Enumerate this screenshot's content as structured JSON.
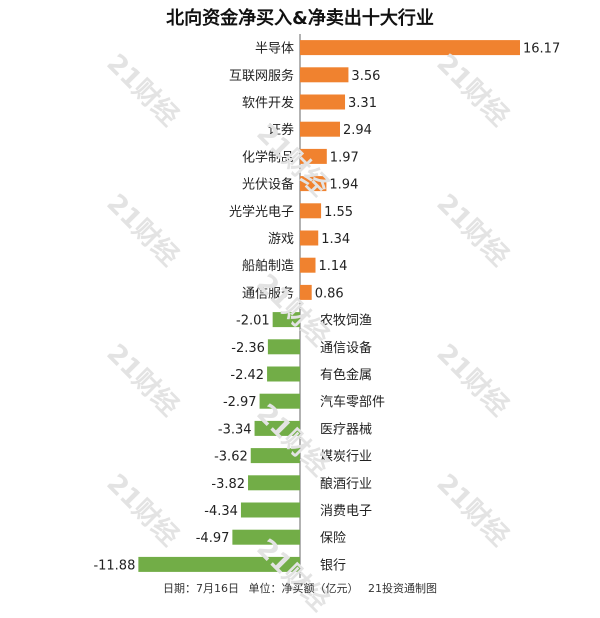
{
  "chart_data": {
    "type": "bar",
    "orientation": "horizontal",
    "title": "北向资金净买入&净卖出十大行业",
    "categories": [
      "半导体",
      "互联网服务",
      "软件开发",
      "证券",
      "化学制品",
      "光伏设备",
      "光学光电子",
      "游戏",
      "船舶制造",
      "通信服务",
      "农牧饲渔",
      "通信设备",
      "有色金属",
      "汽车零部件",
      "医疗器械",
      "煤炭行业",
      "酿酒行业",
      "消费电子",
      "保险",
      "银行"
    ],
    "values": [
      16.17,
      3.56,
      3.31,
      2.94,
      1.97,
      1.94,
      1.55,
      1.34,
      1.14,
      0.86,
      -2.01,
      -2.36,
      -2.42,
      -2.97,
      -3.34,
      -3.62,
      -3.82,
      -4.34,
      -4.97,
      -11.88
    ],
    "value_labels": [
      "16.17",
      "3.56",
      "3.31",
      "2.94",
      "1.97",
      "1.94",
      "1.55",
      "1.34",
      "1.14",
      "0.86",
      "-2.01",
      "-2.36",
      "-2.42",
      "-2.97",
      "-3.34",
      "-3.62",
      "-3.82",
      "-4.34",
      "-4.97",
      "-11.88"
    ],
    "colors": {
      "positive": "#f0822f",
      "negative": "#72ad47",
      "axis": "#666666"
    },
    "grid": false,
    "legend": "none"
  },
  "footer": {
    "date": "日期：7月16日",
    "unit": "单位：净买额（亿元）",
    "source": "21投资通制图"
  },
  "watermark_text": "21财经"
}
